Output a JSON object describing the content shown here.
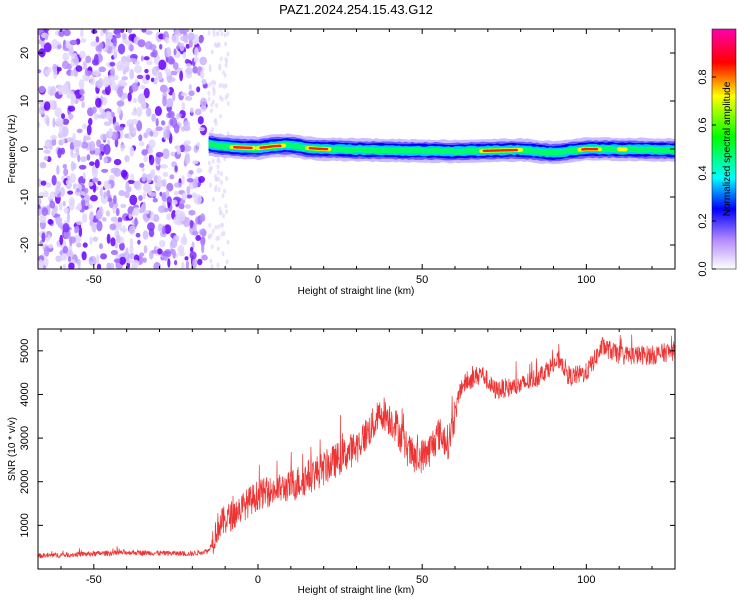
{
  "title": "PAZ1.2024.254.15.43.G12",
  "chart_data": [
    {
      "type": "heatmap",
      "xlabel": "Height of straight line (km)",
      "ylabel": "Frequency (Hz)",
      "xlim": [
        -67,
        127
      ],
      "ylim": [
        -25,
        25
      ],
      "xticks": [
        -50,
        0,
        50,
        100
      ],
      "yticks": [
        -20,
        -10,
        0,
        10,
        20
      ],
      "colorbar": {
        "label": "Normalized spectral amplitude",
        "range": [
          0,
          1
        ],
        "ticks": [
          0.0,
          0.2,
          0.4,
          0.6,
          0.8
        ]
      },
      "noise_region_x": [
        -67,
        -15
      ],
      "ridge_points": [
        {
          "x": -15,
          "freq": 1.0
        },
        {
          "x": -10,
          "freq": 0.5
        },
        {
          "x": -5,
          "freq": 0.3
        },
        {
          "x": 0,
          "freq": 0.2
        },
        {
          "x": 5,
          "freq": 0.6
        },
        {
          "x": 10,
          "freq": 0.8
        },
        {
          "x": 15,
          "freq": 0.2
        },
        {
          "x": 20,
          "freq": 0.0
        },
        {
          "x": 40,
          "freq": -0.3
        },
        {
          "x": 60,
          "freq": -0.5
        },
        {
          "x": 80,
          "freq": -0.2
        },
        {
          "x": 90,
          "freq": -0.8
        },
        {
          "x": 100,
          "freq": 0.0
        },
        {
          "x": 127,
          "freq": -0.2
        }
      ]
    },
    {
      "type": "line",
      "xlabel": "Height of straight line (km)",
      "ylabel": "SNR (10 * v/v)",
      "xlim": [
        -67,
        127
      ],
      "ylim": [
        0,
        5500
      ],
      "xticks": [
        -50,
        0,
        50,
        100
      ],
      "yticks": [
        1000,
        2000,
        3000,
        4000,
        5000
      ],
      "line_color": "#ee3333",
      "series_trend": [
        {
          "x": -67,
          "y": 300
        },
        {
          "x": -40,
          "y": 380
        },
        {
          "x": -20,
          "y": 350
        },
        {
          "x": -15,
          "y": 420
        },
        {
          "x": -12,
          "y": 1000
        },
        {
          "x": -5,
          "y": 1400
        },
        {
          "x": 0,
          "y": 1700
        },
        {
          "x": 10,
          "y": 1900
        },
        {
          "x": 20,
          "y": 2300
        },
        {
          "x": 30,
          "y": 2800
        },
        {
          "x": 38,
          "y": 3600
        },
        {
          "x": 42,
          "y": 3300
        },
        {
          "x": 45,
          "y": 2800
        },
        {
          "x": 48,
          "y": 2500
        },
        {
          "x": 52,
          "y": 2700
        },
        {
          "x": 55,
          "y": 3100
        },
        {
          "x": 58,
          "y": 2900
        },
        {
          "x": 62,
          "y": 4200
        },
        {
          "x": 68,
          "y": 4500
        },
        {
          "x": 72,
          "y": 4100
        },
        {
          "x": 80,
          "y": 4200
        },
        {
          "x": 85,
          "y": 4400
        },
        {
          "x": 92,
          "y": 4800
        },
        {
          "x": 95,
          "y": 4400
        },
        {
          "x": 100,
          "y": 4500
        },
        {
          "x": 105,
          "y": 5100
        },
        {
          "x": 110,
          "y": 4900
        },
        {
          "x": 120,
          "y": 4900
        },
        {
          "x": 127,
          "y": 5000
        }
      ]
    }
  ]
}
